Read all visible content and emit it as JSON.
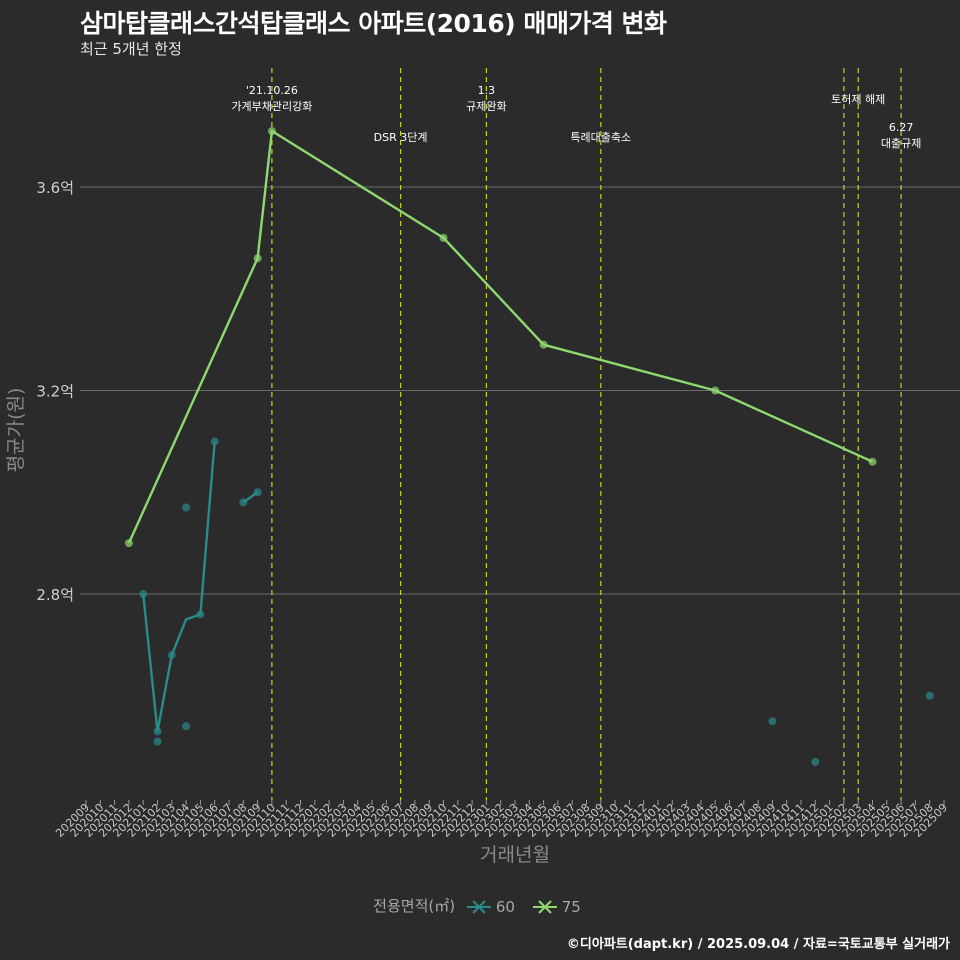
{
  "header": {
    "title": "삼마탑클래스간석탑클래스 아파트(2016) 매매가격 변화",
    "subtitle": "최근 5개년 한정"
  },
  "footer": {
    "caption": "©디아파트(dapt.kr) / 2025.09.04 / 자료=국토교통부 실거래가"
  },
  "legend": {
    "title": "전용면적(㎡)",
    "items": [
      {
        "label": "60",
        "color": "#2b8a8a"
      },
      {
        "label": "75",
        "color": "#8fd86f"
      }
    ]
  },
  "chart_data": {
    "type": "line",
    "title": "삼마탑클래스간석탑클래스 아파트(2016) 매매가격 변화",
    "subtitle": "최근 5개년 한정",
    "xlabel": "거래년월",
    "ylabel": "평균가(원)",
    "ylim": [
      2.45,
      3.75
    ],
    "y_ticks": [
      {
        "value": 2.8,
        "label": "2.8억"
      },
      {
        "value": 3.2,
        "label": "3.2억"
      },
      {
        "value": 3.6,
        "label": "3.6억"
      }
    ],
    "x_categories": [
      "202009",
      "202010",
      "202011",
      "202012",
      "202101",
      "202102",
      "202103",
      "202104",
      "202105",
      "202106",
      "202107",
      "202108",
      "202109",
      "202110",
      "202111",
      "202112",
      "202201",
      "202202",
      "202203",
      "202204",
      "202205",
      "202206",
      "202207",
      "202208",
      "202209",
      "202210",
      "202211",
      "202212",
      "202301",
      "202302",
      "202303",
      "202304",
      "202305",
      "202306",
      "202307",
      "202308",
      "202309",
      "202310",
      "202311",
      "202312",
      "202401",
      "202402",
      "202403",
      "202404",
      "202405",
      "202406",
      "202407",
      "202408",
      "202409",
      "202410",
      "202411",
      "202412",
      "202501",
      "202502",
      "202503",
      "202504",
      "202505",
      "202506",
      "202507",
      "202508",
      "202509"
    ],
    "series": [
      {
        "name": "60",
        "color": "#2b8a8a",
        "segments": [
          [
            [
              "202101",
              2.8
            ],
            [
              "202102",
              2.53
            ],
            [
              "202103",
              2.68
            ],
            [
              "202104",
              2.75
            ],
            [
              "202105",
              2.76
            ],
            [
              "202106",
              3.1
            ]
          ],
          [
            [
              "202108",
              2.98
            ],
            [
              "202109",
              3.0
            ]
          ]
        ],
        "points": [
          [
            "202101",
            2.8
          ],
          [
            "202102",
            2.53
          ],
          [
            "202102",
            2.51
          ],
          [
            "202103",
            2.68
          ],
          [
            "202104",
            2.97
          ],
          [
            "202104",
            2.54
          ],
          [
            "202105",
            2.76
          ],
          [
            "202106",
            3.1
          ],
          [
            "202108",
            2.98
          ],
          [
            "202109",
            3.0
          ],
          [
            "202409",
            2.55
          ],
          [
            "202412",
            2.47
          ],
          [
            "202508",
            2.6
          ]
        ]
      },
      {
        "name": "75",
        "color": "#8fd86f",
        "segments": [
          [
            [
              "202012",
              2.9
            ],
            [
              "202109",
              3.46
            ],
            [
              "202110",
              3.71
            ],
            [
              "202210",
              3.5
            ],
            [
              "202305",
              3.29
            ],
            [
              "202405",
              3.2
            ],
            [
              "202504",
              3.06
            ]
          ]
        ],
        "points": [
          [
            "202012",
            2.9
          ],
          [
            "202109",
            3.46
          ],
          [
            "202110",
            3.71
          ],
          [
            "202210",
            3.5
          ],
          [
            "202305",
            3.29
          ],
          [
            "202405",
            3.2
          ],
          [
            "202504",
            3.06
          ]
        ]
      }
    ],
    "annotations": [
      {
        "x": "202110",
        "lines": [
          "'21.10.26",
          "가계부채관리강화"
        ],
        "tier": "high"
      },
      {
        "x": "202207",
        "lines": [
          "DSR 3단계"
        ],
        "tier": "low"
      },
      {
        "x": "202301",
        "lines": [
          "1.3",
          "규제완화"
        ],
        "tier": "high"
      },
      {
        "x": "202309",
        "lines": [
          "특례대출축소"
        ],
        "tier": "low"
      },
      {
        "x": "202502",
        "lines": [],
        "tier": "none"
      },
      {
        "x": "202503",
        "lines": [
          "토허제 해제"
        ],
        "tier": "mid"
      },
      {
        "x": "202506",
        "lines": [
          "6.27",
          "대출규제"
        ],
        "tier": "lowest"
      }
    ]
  }
}
